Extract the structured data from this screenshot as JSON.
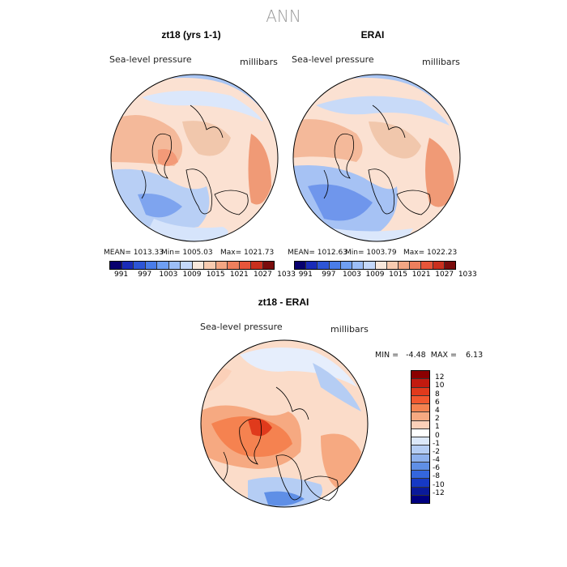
{
  "title": "ANN",
  "panels": [
    {
      "id": "zt18",
      "title": "zt18 (yrs 1-1)",
      "variable": "Sea-level pressure",
      "units": "millibars",
      "mean": "MEAN= 1013.33",
      "min": "Min= 1005.03",
      "max": "Max= 1021.73"
    },
    {
      "id": "erai",
      "title": "ERAI",
      "variable": "Sea-level pressure",
      "units": "millibars",
      "mean": "MEAN= 1012.63",
      "min": "Min= 1003.79",
      "max": "Max= 1022.23"
    }
  ],
  "abs_colorbar": {
    "colors": [
      "#08006e",
      "#1a2bb8",
      "#2d55d6",
      "#4a7de8",
      "#6f9ff2",
      "#9cbef7",
      "#c4d8fa",
      "#f8e8dc",
      "#f8cbb0",
      "#f3a683",
      "#ee7f5d",
      "#e6553a",
      "#c9301e",
      "#7a0c0c"
    ],
    "labels": [
      "991",
      "997",
      "1003",
      "1009",
      "1015",
      "1021",
      "1027",
      "1033"
    ]
  },
  "diff": {
    "title": "zt18 - ERAI",
    "variable": "Sea-level pressure",
    "units": "millibars",
    "min_label": "MIN =",
    "min": "-4.48",
    "max_label": "MAX =",
    "max": "6.13",
    "colors": [
      "#8b0000",
      "#c21a0f",
      "#e03a1c",
      "#f2582f",
      "#f58250",
      "#f6a981",
      "#fbd0b8",
      "#ffffff",
      "#dce8fa",
      "#b5cdf4",
      "#8eb1ed",
      "#5f8fe6",
      "#3466dd",
      "#1639c4",
      "#0a1a9a",
      "#000080"
    ],
    "labels": [
      "12",
      "10",
      "8",
      "6",
      "4",
      "2",
      "1",
      "0",
      "-1",
      "-2",
      "-4",
      "-6",
      "-8",
      "-10",
      "-12"
    ]
  }
}
